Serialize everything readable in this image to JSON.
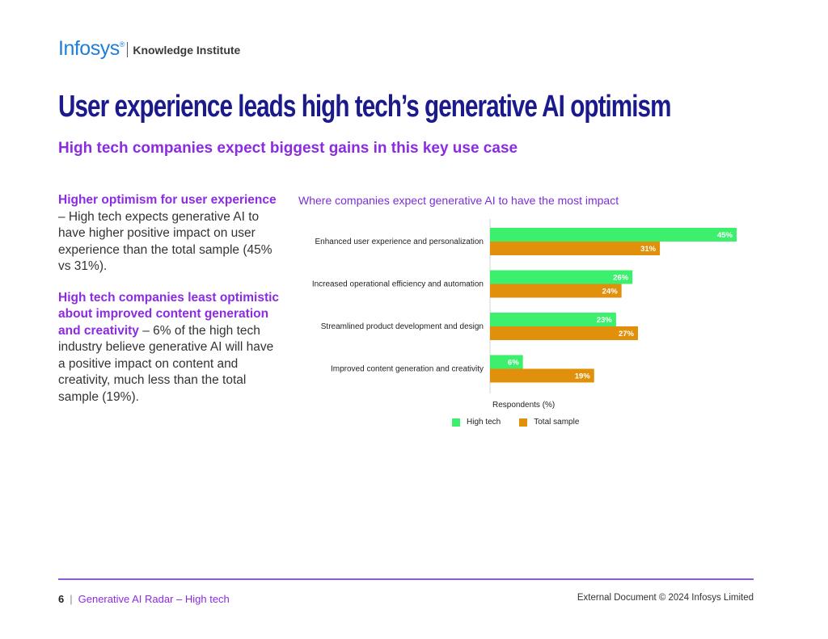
{
  "header": {
    "logo_brand": "Infosys",
    "logo_reg": "®",
    "logo_sub": "Knowledge Institute"
  },
  "title": "User experience leads high tech’s generative AI optimism",
  "subtitle": "High tech companies expect biggest gains in this key use case",
  "left": {
    "p1_highlight": "Higher optimism for user experience",
    "p1_text": " – High tech expects generative AI to have higher positive impact on user experience than the total sample (45% vs 31%).",
    "p2_highlight": "High tech companies least optimistic about improved content generation and creativity",
    "p2_text": " – 6% of the high tech industry believe generative AI will have a positive impact on content and creativity, much less than the total sample (19%)."
  },
  "chart_data": {
    "type": "bar",
    "orientation": "horizontal",
    "title": "Where companies expect generative AI to have the most impact",
    "xlabel": "Respondents (%)",
    "ylabel": "",
    "xlim": [
      0,
      45
    ],
    "grid": false,
    "legend_position": "bottom",
    "categories": [
      "Enhanced user experience and personalization",
      "Increased operational efficiency and automation",
      "Streamlined product development and design",
      "Improved content generation and creativity"
    ],
    "series": [
      {
        "name": "High tech",
        "color": "#3cf06e",
        "values": [
          45,
          26,
          23,
          6
        ]
      },
      {
        "name": "Total sample",
        "color": "#e0900a",
        "values": [
          31,
          24,
          27,
          19
        ]
      }
    ],
    "value_suffix": "%"
  },
  "footer": {
    "page_number": "6",
    "pipe": "|",
    "doc_title": "Generative AI Radar – High tech",
    "copyright": "External Document © 2024 Infosys Limited"
  }
}
